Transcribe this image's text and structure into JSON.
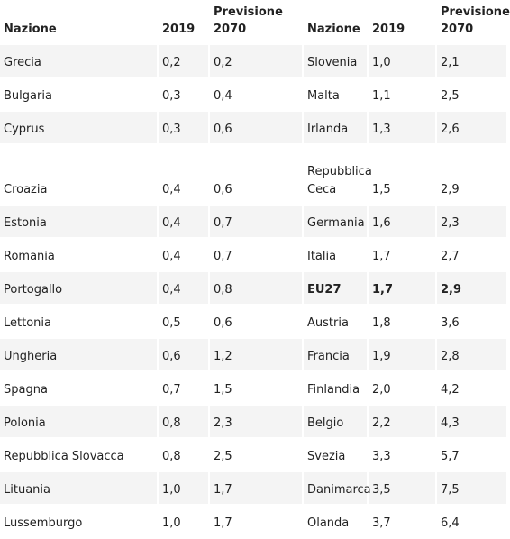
{
  "headers": [
    "Nazione",
    "2019",
    "Previsione 2070",
    "Nazione",
    "2019",
    "Previsione 2070"
  ],
  "header_lines": {
    "previsione_line1": "Previsione",
    "previsione_line2": "2070"
  },
  "rows": [
    {
      "n1": "Grecia",
      "a1": "0,2",
      "b1": "0,2",
      "n2": "Slovenia",
      "a2": "1,0",
      "b2": "2,1"
    },
    {
      "n1": "Bulgaria",
      "a1": "0,3",
      "b1": "0,4",
      "n2": "Malta",
      "a2": "1,1",
      "b2": "2,5"
    },
    {
      "n1": "Cyprus",
      "a1": "0,3",
      "b1": "0,6",
      "n2": "Irlanda",
      "a2": "1,3",
      "b2": "2,6"
    },
    {
      "n1": "Croazia",
      "a1": "0,4",
      "b1": "0,6",
      "n2": "Repubblica Ceca",
      "a2": "1,5",
      "b2": "2,9"
    },
    {
      "n1": "Estonia",
      "a1": "0,4",
      "b1": "0,7",
      "n2": "Germania",
      "a2": "1,6",
      "b2": "2,3"
    },
    {
      "n1": "Romania",
      "a1": "0,4",
      "b1": "0,7",
      "n2": "Italia",
      "a2": "1,7",
      "b2": "2,7"
    },
    {
      "n1": "Portogallo",
      "a1": "0,4",
      "b1": "0,8",
      "n2": "EU27",
      "a2": "1,7",
      "b2": "2,9"
    },
    {
      "n1": "Lettonia",
      "a1": "0,5",
      "b1": "0,6",
      "n2": "Austria",
      "a2": "1,8",
      "b2": "3,6"
    },
    {
      "n1": "Ungheria",
      "a1": "0,6",
      "b1": "1,2",
      "n2": "Francia",
      "a2": "1,9",
      "b2": "2,8"
    },
    {
      "n1": "Spagna",
      "a1": "0,7",
      "b1": "1,5",
      "n2": "Finlandia",
      "a2": "2,0",
      "b2": "4,2"
    },
    {
      "n1": "Polonia",
      "a1": "0,8",
      "b1": "2,3",
      "n2": "Belgio",
      "a2": "2,2",
      "b2": "4,3"
    },
    {
      "n1": "Repubblica Slovacca",
      "a1": "0,8",
      "b1": "2,5",
      "n2": "Svezia",
      "a2": "3,3",
      "b2": "5,7"
    },
    {
      "n1": "Lituania",
      "a1": "1,0",
      "b1": "1,7",
      "n2": "Danimarca",
      "a2": "3,5",
      "b2": "7,5"
    },
    {
      "n1": "Lussemburgo",
      "a1": "1,0",
      "b1": "1,7",
      "n2": "Olanda",
      "a2": "3,7",
      "b2": "6,4"
    }
  ]
}
